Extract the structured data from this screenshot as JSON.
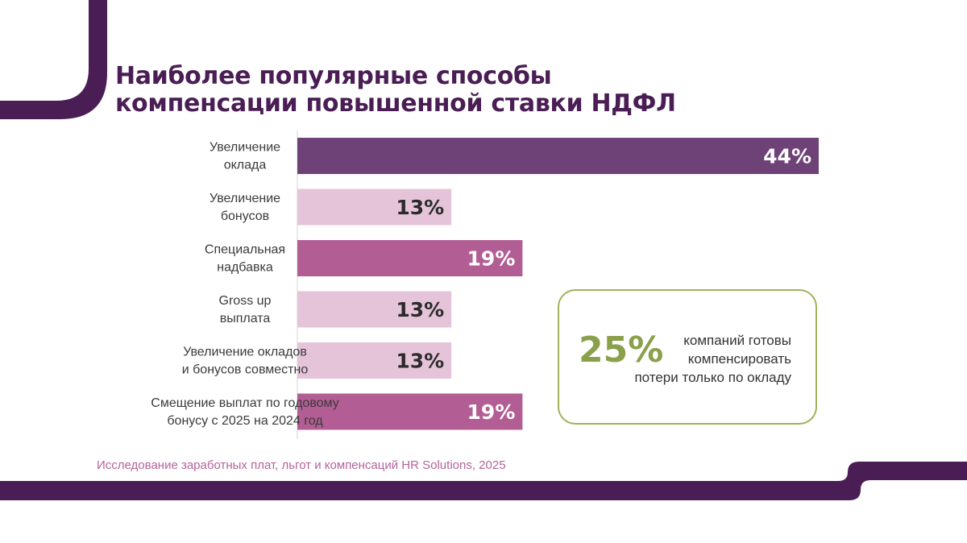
{
  "title": {
    "line1": "Наиболее популярные способы",
    "line2": "компенсации повышенной ставки НДФЛ"
  },
  "chart_data": {
    "type": "bar",
    "orientation": "horizontal",
    "categories": [
      [
        "Увеличение",
        "оклада"
      ],
      [
        "Увеличение",
        "бонусов"
      ],
      [
        "Специальная",
        "надбавка"
      ],
      [
        "Gross up",
        "выплата"
      ],
      [
        "Увеличение окладов",
        "и бонусов совместно"
      ],
      [
        "Смещение выплат по годовому",
        "бонусу с 2025 на 2024 год"
      ]
    ],
    "values": [
      44,
      13,
      19,
      13,
      13,
      19
    ],
    "value_labels": [
      "44%",
      "13%",
      "19%",
      "13%",
      "13%",
      "19%"
    ],
    "bar_colors": [
      "#6e4277",
      "#e5c4d9",
      "#b25d93",
      "#e5c4d9",
      "#e5c4d9",
      "#b25d93"
    ],
    "label_colors": [
      "#ffffff",
      "#2b2b2b",
      "#ffffff",
      "#2b2b2b",
      "#2b2b2b",
      "#ffffff"
    ],
    "xlim": [
      0,
      44
    ],
    "grid": false
  },
  "callout": {
    "value": "25%",
    "text_line1": "компаний готовы",
    "text_line2": "компенсировать",
    "text_line3": "потери только по окладу"
  },
  "source": "Исследование заработных плат, льгот и компенсаций HR Solutions, 2025",
  "colors": {
    "brand_dark": "#4a1e55",
    "accent_green": "#8aa04a",
    "source_text": "#b5639a"
  }
}
